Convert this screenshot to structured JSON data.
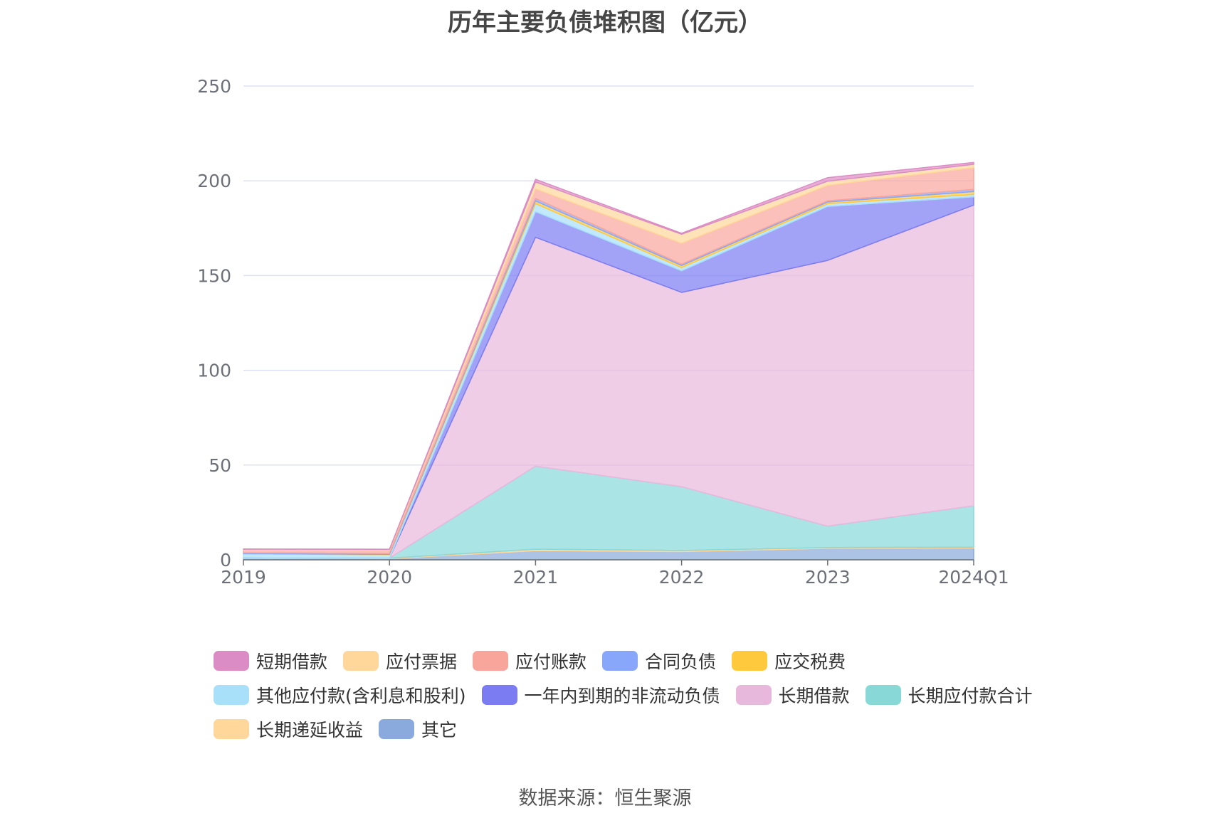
{
  "chart_data": {
    "type": "area",
    "stacked": true,
    "title": "历年主要负债堆积图（亿元）",
    "categories": [
      "2019",
      "2020",
      "2021",
      "2022",
      "2023",
      "2024Q1"
    ],
    "ylim": [
      0,
      250
    ],
    "yticks": [
      "0",
      "50",
      "100",
      "150",
      "200",
      "250"
    ],
    "grid": true,
    "legend_position": "bottom",
    "series": [
      {
        "name": "其它",
        "color": "#8aa9dc",
        "values": [
          0.8,
          0.6,
          4.8,
          4.3,
          6.0,
          6.2
        ]
      },
      {
        "name": "长期递延收益",
        "color": "#ffd79a",
        "values": [
          0.3,
          0.3,
          0.8,
          0.6,
          0.5,
          0.5
        ]
      },
      {
        "name": "长期应付款合计",
        "color": "#88d8d8",
        "values": [
          0,
          0,
          43.8,
          33.7,
          11.2,
          21.8
        ]
      },
      {
        "name": "长期借款",
        "color": "#e8b8dc",
        "values": [
          0,
          0,
          120.8,
          102.5,
          140.3,
          158.7
        ]
      },
      {
        "name": "一年内到期的非流动负债",
        "color": "#7b7cf2",
        "values": [
          0,
          0,
          13.5,
          11.4,
          28.5,
          4.3
        ]
      },
      {
        "name": "其他应付款(含利息和股利)",
        "color": "#a8e0fa",
        "values": [
          2.0,
          1.8,
          4.3,
          1.7,
          1.4,
          1.3
        ]
      },
      {
        "name": "应交税费",
        "color": "#ffc93e",
        "values": [
          0.2,
          0.2,
          1.4,
          1.1,
          0.9,
          1.5
        ]
      },
      {
        "name": "合同负债",
        "color": "#88a6fa",
        "values": [
          0.4,
          0.4,
          1.3,
          0.7,
          0.6,
          1.2
        ]
      },
      {
        "name": "应付账款",
        "color": "#f8a59b",
        "values": [
          1.5,
          1.8,
          5.1,
          11.0,
          8.2,
          11.4
        ]
      },
      {
        "name": "应付票据",
        "color": "#ffd79a",
        "values": [
          0.4,
          0.4,
          3.6,
          4.8,
          2.2,
          1.8
        ]
      },
      {
        "name": "短期借款",
        "color": "#dc8cc4",
        "values": [
          0.1,
          0.1,
          1.4,
          0.5,
          1.9,
          1.0
        ]
      }
    ]
  },
  "legend": [
    {
      "name": "短期借款",
      "color": "#dc8cc4"
    },
    {
      "name": "应付票据",
      "color": "#ffd79a"
    },
    {
      "name": "应付账款",
      "color": "#f8a59b"
    },
    {
      "name": "合同负债",
      "color": "#88a6fa"
    },
    {
      "name": "应交税费",
      "color": "#ffc93e"
    },
    {
      "name": "其他应付款(含利息和股利)",
      "color": "#a8e0fa"
    },
    {
      "name": "一年内到期的非流动负债",
      "color": "#7b7cf2"
    },
    {
      "name": "长期借款",
      "color": "#e8b8dc"
    },
    {
      "name": "长期应付款合计",
      "color": "#88d8d8"
    },
    {
      "name": "长期递延收益",
      "color": "#ffd79a"
    },
    {
      "name": "其它",
      "color": "#8aa9dc"
    }
  ],
  "source_note": "数据来源：恒生聚源"
}
